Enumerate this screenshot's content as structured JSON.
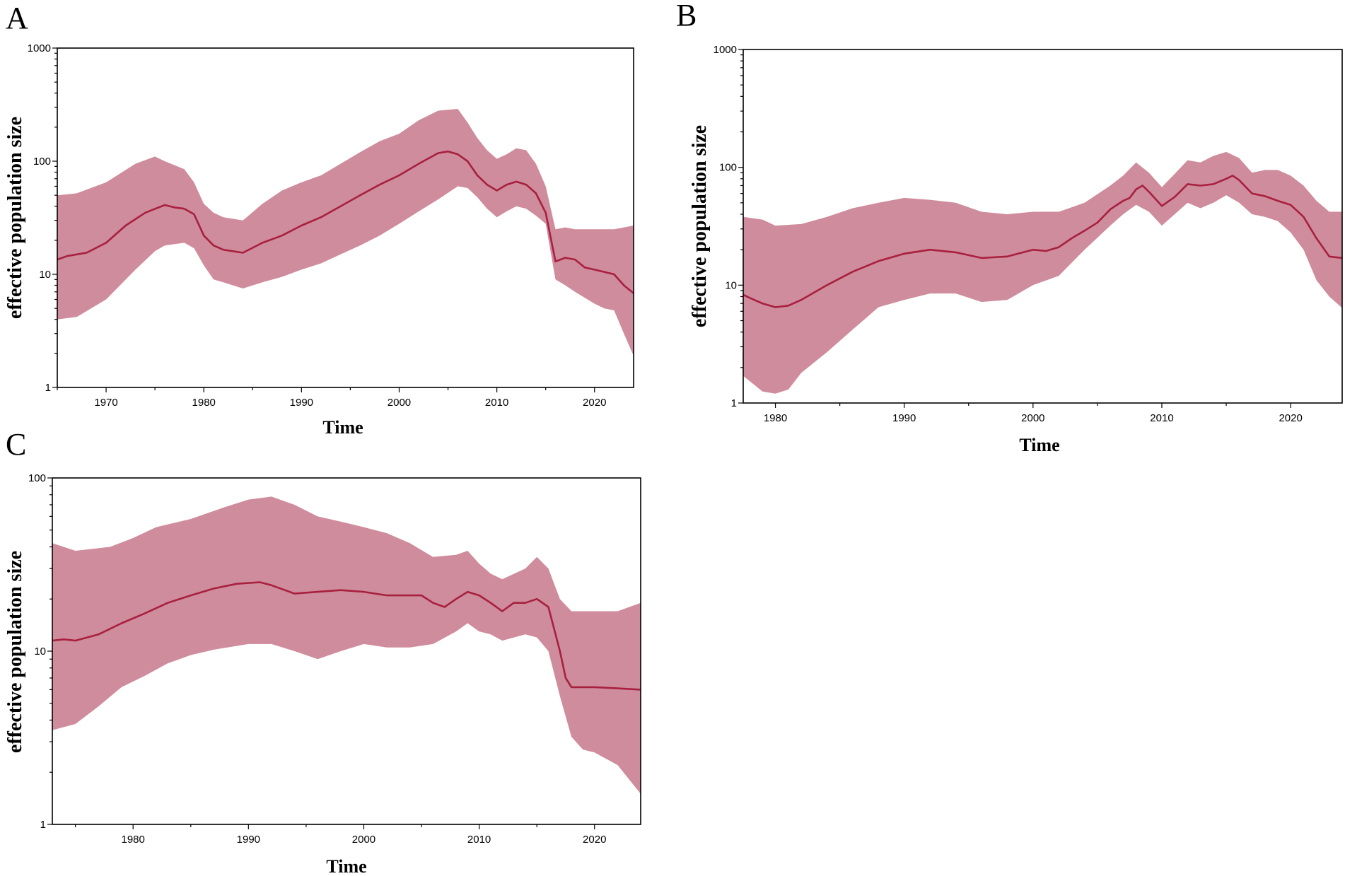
{
  "colors": {
    "band": "#cf8c9c",
    "median": "#a8203f",
    "axis": "#000000"
  },
  "chart_data": [
    {
      "type": "area",
      "panel": "A",
      "xlabel": "Time",
      "ylabel": "effective population size",
      "y_scale": "log",
      "xlim": [
        1965,
        2024
      ],
      "ylim": [
        1,
        1000
      ],
      "xticks": [
        "1970",
        "1980",
        "1990",
        "2000",
        "2010",
        "2020"
      ],
      "yticks": [
        "1",
        "10",
        "100",
        "1000"
      ],
      "series": [
        {
          "name": "median",
          "x": [
            1965,
            1966,
            1968,
            1970,
            1972,
            1974,
            1976,
            1977,
            1978,
            1979,
            1980,
            1981,
            1982,
            1984,
            1986,
            1988,
            1990,
            1992,
            1994,
            1996,
            1998,
            2000,
            2002,
            2004,
            2005,
            2006,
            2007,
            2008,
            2009,
            2010,
            2011,
            2012,
            2013,
            2014,
            2015,
            2016,
            2017,
            2018,
            2019,
            2020,
            2021,
            2022,
            2023,
            2024
          ],
          "values": [
            13.5,
            14.5,
            15.5,
            19,
            27,
            35,
            41,
            39,
            38,
            34,
            22,
            18,
            16.5,
            15.5,
            19,
            22,
            27,
            32,
            40,
            50,
            62,
            75,
            95,
            118,
            122,
            115,
            100,
            75,
            62,
            55,
            62,
            66,
            62,
            52,
            35,
            13,
            14,
            13.5,
            11.5,
            11,
            10.5,
            10,
            8,
            6.8
          ]
        },
        {
          "name": "upper",
          "x": [
            1965,
            1967,
            1970,
            1973,
            1975,
            1976,
            1978,
            1979,
            1980,
            1981,
            1982,
            1984,
            1986,
            1988,
            1990,
            1992,
            1994,
            1996,
            1998,
            2000,
            2002,
            2004,
            2006,
            2007,
            2008,
            2009,
            2010,
            2011,
            2012,
            2013,
            2014,
            2015,
            2016,
            2017,
            2018,
            2020,
            2022,
            2024
          ],
          "values": [
            50,
            52,
            65,
            95,
            110,
            100,
            85,
            65,
            42,
            35,
            32,
            30,
            42,
            55,
            65,
            75,
            95,
            120,
            150,
            175,
            230,
            280,
            290,
            220,
            160,
            125,
            105,
            115,
            130,
            125,
            95,
            60,
            25,
            26,
            25,
            25,
            25,
            27
          ]
        },
        {
          "name": "lower",
          "x": [
            1965,
            1967,
            1970,
            1973,
            1975,
            1976,
            1978,
            1979,
            1980,
            1981,
            1982,
            1984,
            1986,
            1988,
            1990,
            1992,
            1994,
            1996,
            1998,
            2000,
            2002,
            2004,
            2006,
            2007,
            2008,
            2009,
            2010,
            2011,
            2012,
            2013,
            2014,
            2015,
            2016,
            2017,
            2018,
            2020,
            2021,
            2022,
            2023,
            2024
          ],
          "values": [
            4,
            4.2,
            6,
            11,
            16,
            18,
            19,
            17,
            12,
            9,
            8.5,
            7.5,
            8.5,
            9.5,
            11,
            12.5,
            15,
            18,
            22,
            28,
            36,
            46,
            60,
            58,
            48,
            38,
            32,
            36,
            40,
            38,
            33,
            28,
            9,
            8,
            7,
            5.5,
            5,
            4.8,
            3,
            1.9
          ]
        }
      ]
    },
    {
      "type": "area",
      "panel": "B",
      "xlabel": "Time",
      "ylabel": "effective population size",
      "y_scale": "log",
      "xlim": [
        1977.5,
        2024
      ],
      "ylim": [
        1,
        1000
      ],
      "xticks": [
        "1980",
        "1990",
        "2000",
        "2010",
        "2020"
      ],
      "yticks": [
        "1",
        "10",
        "100",
        "1000"
      ],
      "series": [
        {
          "name": "median",
          "x": [
            1977.5,
            1978,
            1979,
            1980,
            1981,
            1982,
            1984,
            1986,
            1988,
            1990,
            1992,
            1994,
            1996,
            1998,
            2000,
            2001,
            2002,
            2003,
            2004,
            2005,
            2006,
            2007,
            2007.5,
            2008,
            2008.5,
            2009,
            2010,
            2011,
            2012,
            2013,
            2014,
            2015,
            2015.5,
            2016,
            2017,
            2018,
            2019,
            2020,
            2021,
            2022,
            2023,
            2024
          ],
          "values": [
            8.3,
            7.8,
            7,
            6.5,
            6.7,
            7.5,
            10,
            13,
            16,
            18.5,
            20,
            19,
            17,
            17.5,
            20,
            19.5,
            21,
            25,
            29,
            34,
            44,
            52,
            55,
            65,
            70,
            62,
            47,
            56,
            72,
            70,
            72,
            80,
            85,
            78,
            60,
            57,
            52,
            48,
            38,
            25,
            17.5,
            17
          ]
        },
        {
          "name": "upper",
          "x": [
            1977.5,
            1979,
            1980,
            1982,
            1984,
            1986,
            1988,
            1990,
            1992,
            1994,
            1996,
            1998,
            2000,
            2002,
            2004,
            2006,
            2007,
            2008,
            2009,
            2010,
            2011,
            2012,
            2013,
            2014,
            2015,
            2016,
            2017,
            2018,
            2019,
            2020,
            2021,
            2022,
            2023,
            2024
          ],
          "values": [
            38,
            36,
            32,
            33,
            38,
            45,
            50,
            55,
            53,
            50,
            42,
            40,
            42,
            42,
            50,
            70,
            85,
            110,
            90,
            68,
            88,
            115,
            110,
            125,
            135,
            120,
            90,
            95,
            95,
            85,
            70,
            52,
            42,
            42
          ]
        },
        {
          "name": "lower",
          "x": [
            1977.5,
            1979,
            1980,
            1981,
            1982,
            1984,
            1986,
            1988,
            1990,
            1992,
            1994,
            1996,
            1998,
            2000,
            2002,
            2004,
            2006,
            2007,
            2008,
            2009,
            2010,
            2011,
            2012,
            2013,
            2014,
            2015,
            2016,
            2017,
            2018,
            2019,
            2020,
            2021,
            2022,
            2023,
            2024
          ],
          "values": [
            1.7,
            1.25,
            1.2,
            1.3,
            1.8,
            2.7,
            4.2,
            6.5,
            7.5,
            8.5,
            8.5,
            7.2,
            7.5,
            10,
            12,
            20,
            32,
            40,
            48,
            42,
            32,
            40,
            50,
            45,
            50,
            58,
            50,
            40,
            38,
            35,
            28,
            20,
            11,
            8,
            6.4
          ]
        }
      ]
    },
    {
      "type": "area",
      "panel": "C",
      "xlabel": "Time",
      "ylabel": "effective population size",
      "y_scale": "log",
      "xlim": [
        1973,
        2024
      ],
      "ylim": [
        1,
        100
      ],
      "xticks": [
        "1980",
        "1990",
        "2000",
        "2010",
        "2020"
      ],
      "yticks": [
        "1",
        "10",
        "100"
      ],
      "series": [
        {
          "name": "median",
          "x": [
            1973,
            1974,
            1975,
            1977,
            1979,
            1981,
            1983,
            1985,
            1987,
            1989,
            1991,
            1992,
            1994,
            1996,
            1998,
            2000,
            2002,
            2004,
            2005,
            2006,
            2007,
            2008,
            2009,
            2010,
            2011,
            2012,
            2013,
            2014,
            2015,
            2016,
            2017,
            2017.5,
            2018,
            2019,
            2020,
            2022,
            2024
          ],
          "values": [
            11.5,
            11.7,
            11.5,
            12.5,
            14.5,
            16.5,
            19,
            21,
            23,
            24.5,
            25,
            24,
            21.5,
            22,
            22.5,
            22,
            21,
            21,
            21,
            19,
            18,
            20,
            22,
            21,
            19,
            17,
            19,
            19,
            20,
            18,
            10,
            7,
            6.2,
            6.2,
            6.2,
            6.1,
            6
          ]
        },
        {
          "name": "upper",
          "x": [
            1973,
            1975,
            1978,
            1980,
            1982,
            1985,
            1988,
            1990,
            1992,
            1994,
            1996,
            1998,
            2000,
            2002,
            2004,
            2006,
            2008,
            2009,
            2010,
            2011,
            2012,
            2014,
            2015,
            2016,
            2017,
            2018,
            2020,
            2022,
            2024
          ],
          "values": [
            42,
            38,
            40,
            45,
            52,
            58,
            68,
            75,
            78,
            70,
            60,
            56,
            52,
            48,
            42,
            35,
            36,
            38,
            32,
            28,
            26,
            30,
            35,
            30,
            20,
            17,
            17,
            17,
            19
          ]
        },
        {
          "name": "lower",
          "x": [
            1973,
            1975,
            1977,
            1979,
            1981,
            1983,
            1985,
            1987,
            1990,
            1992,
            1994,
            1996,
            1998,
            2000,
            2002,
            2004,
            2006,
            2008,
            2009,
            2010,
            2011,
            2012,
            2014,
            2015,
            2016,
            2017,
            2018,
            2019,
            2020,
            2022,
            2024
          ],
          "values": [
            3.5,
            3.8,
            4.8,
            6.2,
            7.2,
            8.5,
            9.5,
            10.2,
            11,
            11,
            10,
            9,
            10,
            11,
            10.5,
            10.5,
            11,
            13,
            14.5,
            13,
            12.5,
            11.5,
            12.5,
            12,
            10,
            5.5,
            3.2,
            2.7,
            2.6,
            2.2,
            1.5
          ]
        }
      ]
    }
  ]
}
